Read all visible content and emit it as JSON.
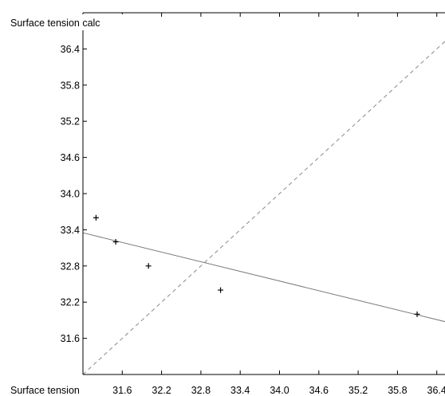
{
  "chart_data": {
    "type": "scatter",
    "title": "",
    "ylabel": "Surface tension calc",
    "xlabel": "Surface tension",
    "xlim": [
      31.0,
      37.0
    ],
    "ylim": [
      31.0,
      37.0
    ],
    "xticks": [
      31.6,
      32.2,
      32.8,
      33.4,
      34.0,
      34.6,
      35.2,
      35.8,
      36.4
    ],
    "yticks": [
      31.6,
      32.2,
      32.8,
      33.4,
      34.0,
      34.6,
      35.2,
      35.8,
      36.4
    ],
    "points": [
      {
        "x": 31.2,
        "y": 33.6
      },
      {
        "x": 31.5,
        "y": 33.2
      },
      {
        "x": 32.0,
        "y": 32.8
      },
      {
        "x": 33.1,
        "y": 32.4
      },
      {
        "x": 36.1,
        "y": 32.0
      }
    ],
    "fit_line": {
      "style": "solid",
      "x": [
        31.0,
        37.0
      ],
      "y": [
        33.35,
        31.75
      ]
    },
    "identity_line": {
      "style": "dashed",
      "x": [
        31.0,
        37.0
      ],
      "y": [
        31.0,
        37.0
      ]
    },
    "grid": false
  }
}
